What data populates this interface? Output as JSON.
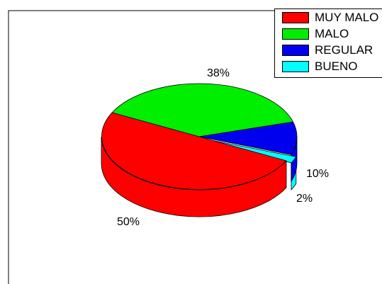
{
  "chart_data": {
    "type": "pie",
    "style": "3d-pie",
    "categories": [
      "MUY MALO",
      "MALO",
      "REGULAR",
      "BUENO"
    ],
    "values": [
      50,
      38,
      10,
      2
    ],
    "labels": [
      "50%",
      "38%",
      "10%",
      "2%"
    ],
    "colors": [
      "#ff0000",
      "#00ee00",
      "#0000ee",
      "#00ffff"
    ],
    "legend": {
      "placement": "top-right",
      "entries": [
        "MUY MALO",
        "MALO",
        "REGULAR",
        "BUENO"
      ]
    }
  }
}
